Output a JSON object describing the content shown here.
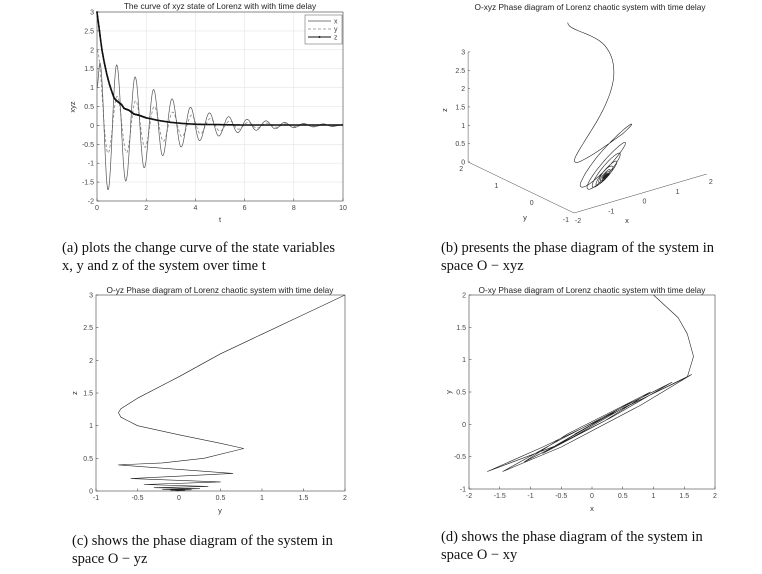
{
  "captions": {
    "a": {
      "line1": "(a) plots the change curve of the state variables",
      "line2": "x, y and z of the system over time t"
    },
    "b": {
      "line1": "(b) presents the phase diagram of the system in",
      "line2": "space O − xyz"
    },
    "c": {
      "line1": "(c) shows the phase diagram of the system in",
      "line2": "space O − yz"
    },
    "d": {
      "line1": "(d) shows the phase diagram of the system in",
      "line2": "space O − xy"
    }
  },
  "chart_data": [
    {
      "type": "line",
      "title": "The curve of xyz state of Lorenz  with with time delay",
      "xlabel": "t",
      "ylabel": "xyz",
      "xlim": [
        0,
        10
      ],
      "ylim": [
        -2,
        3
      ],
      "xticks": [
        0,
        2,
        4,
        6,
        8,
        10
      ],
      "yticks": [
        -2,
        -1.5,
        -1,
        -0.5,
        0,
        0.5,
        1,
        1.5,
        2,
        2.5,
        3
      ],
      "grid": true,
      "legend_position": "top-right",
      "series": [
        {
          "name": "x",
          "style": "solid",
          "extrema": [
            [
              0,
              1.0
            ],
            [
              0.12,
              1.65
            ],
            [
              0.45,
              -1.7
            ],
            [
              0.8,
              1.6
            ],
            [
              1.17,
              -1.47
            ],
            [
              1.55,
              1.28
            ],
            [
              1.92,
              -1.12
            ],
            [
              2.3,
              0.95
            ],
            [
              2.67,
              -0.8
            ],
            [
              3.05,
              0.7
            ],
            [
              3.42,
              -0.57
            ],
            [
              3.8,
              0.48
            ],
            [
              4.17,
              -0.4
            ],
            [
              4.57,
              0.33
            ],
            [
              4.95,
              -0.28
            ],
            [
              5.35,
              0.23
            ],
            [
              5.72,
              -0.19
            ],
            [
              6.1,
              0.16
            ],
            [
              6.47,
              -0.13
            ],
            [
              6.87,
              0.12
            ],
            [
              7.25,
              -0.09
            ],
            [
              7.62,
              0.08
            ],
            [
              8.0,
              -0.06
            ],
            [
              8.4,
              0.05
            ],
            [
              8.8,
              -0.04
            ],
            [
              9.2,
              0.04
            ],
            [
              9.57,
              -0.03
            ],
            [
              9.95,
              0.02
            ],
            [
              10,
              0.02
            ]
          ]
        },
        {
          "name": "y",
          "style": "dashed",
          "extrema": [
            [
              0,
              2.0
            ],
            [
              0.45,
              -0.73
            ],
            [
              0.82,
              0.77
            ],
            [
              1.2,
              -0.72
            ],
            [
              1.57,
              0.65
            ],
            [
              1.95,
              -0.58
            ],
            [
              2.33,
              0.5
            ],
            [
              2.7,
              -0.42
            ],
            [
              3.08,
              0.35
            ],
            [
              3.45,
              -0.3
            ],
            [
              3.85,
              0.27
            ],
            [
              4.2,
              -0.22
            ],
            [
              4.6,
              0.18
            ],
            [
              5.0,
              -0.15
            ],
            [
              5.4,
              0.12
            ],
            [
              5.75,
              -0.1
            ],
            [
              6.15,
              0.08
            ],
            [
              6.5,
              -0.07
            ],
            [
              6.9,
              0.06
            ],
            [
              7.3,
              -0.05
            ],
            [
              7.65,
              0.04
            ],
            [
              8.05,
              -0.035
            ],
            [
              8.45,
              0.03
            ],
            [
              8.85,
              -0.025
            ],
            [
              9.25,
              0.02
            ],
            [
              9.6,
              -0.015
            ],
            [
              10,
              0.01
            ]
          ]
        },
        {
          "name": "z",
          "style": "solid-dots",
          "points": [
            [
              0,
              3
            ],
            [
              0.1,
              2.5
            ],
            [
              0.2,
              2.0
            ],
            [
              0.3,
              1.65
            ],
            [
              0.4,
              1.35
            ],
            [
              0.5,
              1.1
            ],
            [
              0.6,
              0.9
            ],
            [
              0.7,
              0.72
            ],
            [
              0.8,
              0.65
            ],
            [
              1.0,
              0.55
            ],
            [
              1.1,
              0.45
            ],
            [
              1.3,
              0.4
            ],
            [
              1.5,
              0.3
            ],
            [
              1.7,
              0.27
            ],
            [
              2.0,
              0.2
            ],
            [
              2.5,
              0.13
            ],
            [
              3.0,
              0.08
            ],
            [
              3.5,
              0.05
            ],
            [
              4,
              0.03
            ],
            [
              5,
              0.02
            ],
            [
              6,
              0.01
            ],
            [
              10,
              0.01
            ]
          ]
        }
      ]
    },
    {
      "type": "line3d",
      "title": "O-xyz Phase diagram of Lorenz chaotic system with time delay",
      "xlabel": "x",
      "ylabel": "y",
      "zlabel": "z",
      "xlim": [
        -2,
        2
      ],
      "ylim": [
        -1,
        2
      ],
      "zlim": [
        0,
        3
      ],
      "xticks": [
        -2,
        -1,
        0,
        1,
        2
      ],
      "yticks": [
        -1,
        0,
        1,
        2
      ],
      "zticks": [
        0,
        0.5,
        1,
        1.5,
        2,
        2.5,
        3
      ],
      "grid": false,
      "source": "trajectory (x(t), y(t), z(t)) of panel (a)"
    },
    {
      "type": "line",
      "title": "O-yz Phase diagram of Lorenz chaotic system with time delay",
      "xlabel": "y",
      "ylabel": "z",
      "xlim": [
        -1,
        2
      ],
      "ylim": [
        0,
        3
      ],
      "xticks": [
        -1,
        -0.5,
        0,
        0.5,
        1,
        1.5,
        2
      ],
      "yticks": [
        0,
        0.5,
        1,
        1.5,
        2,
        2.5,
        3
      ],
      "grid": false,
      "points": [
        [
          2,
          3
        ],
        [
          1.5,
          2.7
        ],
        [
          1,
          2.4
        ],
        [
          0.5,
          2.1
        ],
        [
          0,
          1.75
        ],
        [
          -0.5,
          1.42
        ],
        [
          -0.7,
          1.26
        ],
        [
          -0.73,
          1.2
        ],
        [
          -0.7,
          1.13
        ],
        [
          -0.5,
          1.0
        ],
        [
          0,
          0.86
        ],
        [
          0.5,
          0.73
        ],
        [
          0.78,
          0.65
        ],
        [
          0.3,
          0.5
        ],
        [
          -0.2,
          0.43
        ],
        [
          -0.73,
          0.4
        ],
        [
          0.65,
          0.27
        ],
        [
          -0.58,
          0.19
        ],
        [
          0.5,
          0.14
        ],
        [
          -0.42,
          0.1
        ],
        [
          0.35,
          0.07
        ],
        [
          -0.3,
          0.05
        ],
        [
          0.25,
          0.035
        ],
        [
          -0.2,
          0.025
        ],
        [
          0.15,
          0.018
        ],
        [
          -0.1,
          0.012
        ],
        [
          0.07,
          0.008
        ],
        [
          -0.04,
          0.005
        ],
        [
          0,
          0
        ]
      ]
    },
    {
      "type": "line",
      "title": "O-xy Phase diagram of Lorenz chaotic system with time delay",
      "xlabel": "x",
      "ylabel": "y",
      "xlim": [
        -2,
        2
      ],
      "ylim": [
        -1,
        2
      ],
      "xticks": [
        -2,
        -1.5,
        -1,
        -0.5,
        0,
        0.5,
        1,
        1.5,
        2
      ],
      "yticks": [
        -1,
        -0.5,
        0,
        0.5,
        1,
        1.5,
        2
      ],
      "grid": false,
      "points": [
        [
          1,
          2
        ],
        [
          1.4,
          1.65
        ],
        [
          1.55,
          1.4
        ],
        [
          1.65,
          1.05
        ],
        [
          1.55,
          0.73
        ],
        [
          0.5,
          0.25
        ],
        [
          -0.5,
          -0.3
        ],
        [
          -1.7,
          -0.73
        ],
        [
          -0.8,
          -0.35
        ],
        [
          0.3,
          0.15
        ],
        [
          1.62,
          0.77
        ],
        [
          0.8,
          0.3
        ],
        [
          -0.5,
          -0.35
        ],
        [
          -1.45,
          -0.73
        ],
        [
          -0.6,
          -0.28
        ],
        [
          0.4,
          0.22
        ],
        [
          1.3,
          0.65
        ],
        [
          0.3,
          0.1
        ],
        [
          -1.1,
          -0.58
        ],
        [
          -0.4,
          -0.15
        ],
        [
          0.95,
          0.5
        ],
        [
          0.2,
          0.05
        ],
        [
          -0.8,
          -0.45
        ],
        [
          0.7,
          0.38
        ],
        [
          -0.6,
          -0.33
        ],
        [
          0.5,
          0.27
        ],
        [
          -0.4,
          -0.22
        ],
        [
          0.35,
          0.18
        ],
        [
          -0.28,
          -0.15
        ],
        [
          0.2,
          0.1
        ],
        [
          -0.15,
          -0.08
        ],
        [
          0.1,
          0.05
        ],
        [
          0,
          0
        ]
      ]
    }
  ]
}
